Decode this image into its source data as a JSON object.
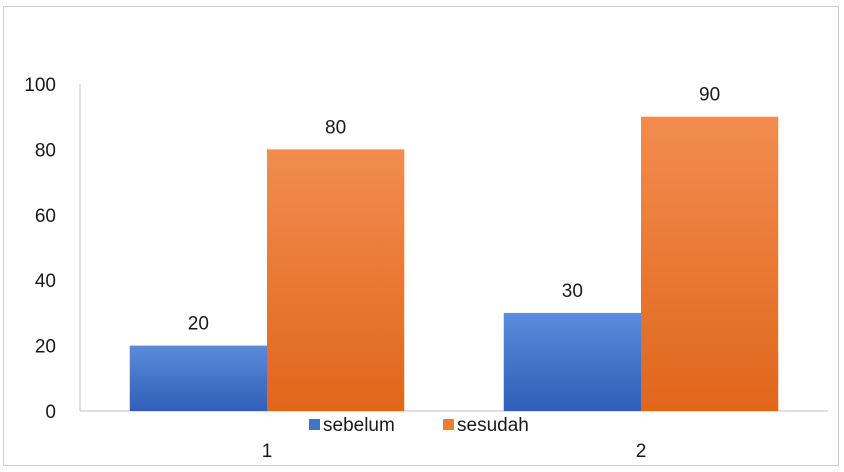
{
  "chart_data": {
    "type": "bar",
    "categories": [
      "1",
      "2"
    ],
    "series": [
      {
        "name": "sebelum",
        "values": [
          20,
          30
        ],
        "color": "#4472c4"
      },
      {
        "name": "sesudah",
        "values": [
          80,
          90
        ],
        "color": "#ed7d31"
      }
    ],
    "yticks": [
      "0",
      "20",
      "40",
      "60",
      "80",
      "100"
    ],
    "ylim": [
      0,
      100
    ],
    "grid": false,
    "legend": "bottom-center"
  }
}
